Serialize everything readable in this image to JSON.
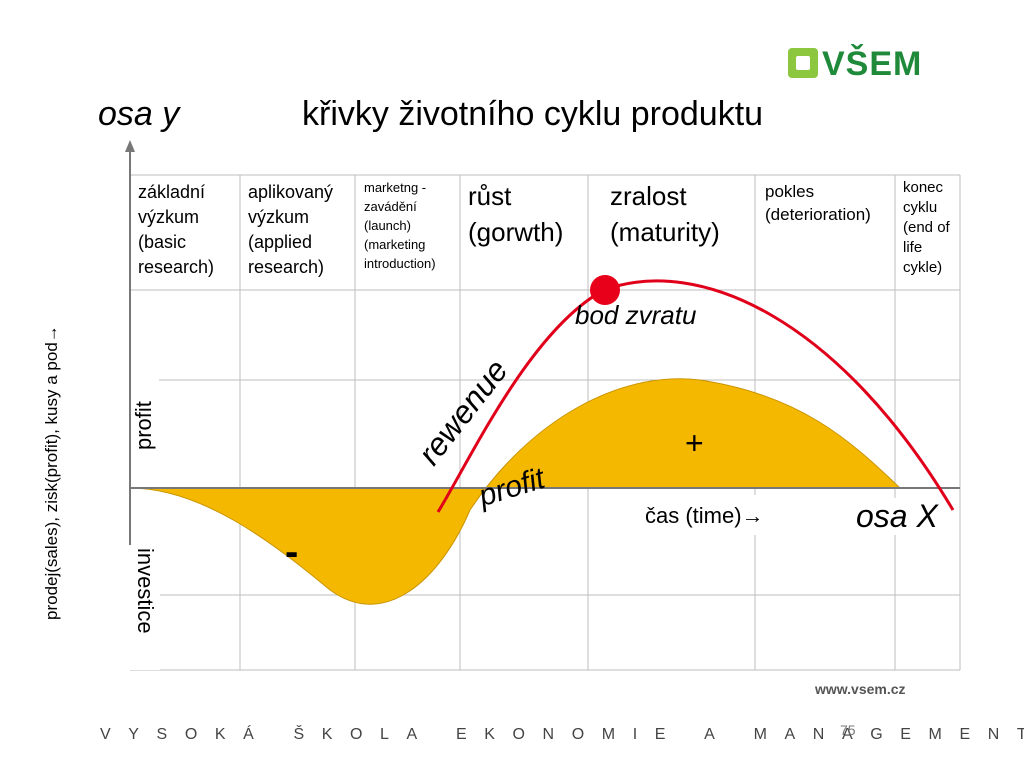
{
  "header": {
    "logo_text": "VŠEM",
    "axis_y_label": "osa y",
    "title": "křivky životního cyklu produktu"
  },
  "axes": {
    "y_axis_text": "prodej(sales), zisk(profit), kusy a pod→",
    "profit_label": "profit",
    "investment_label": "investice",
    "time_label": "čas (time)→",
    "x_axis_label": "osa X"
  },
  "phases": [
    {
      "lines": [
        "základní",
        "výzkum",
        "(basic",
        "research)"
      ]
    },
    {
      "lines": [
        "aplikovaný",
        "výzkum",
        "(applied",
        "research)"
      ]
    },
    {
      "lines": [
        "marketng -",
        "zavádění",
        "(launch)",
        "(marketing",
        "introduction)"
      ]
    },
    {
      "lines": [
        "růst",
        "(gorwth)"
      ]
    },
    {
      "lines": [
        "zralost",
        "(maturity)"
      ]
    },
    {
      "lines": [
        "pokles",
        "(deterioration)"
      ]
    },
    {
      "lines": [
        "konec",
        "cyklu",
        "(end of",
        "life",
        "cykle)"
      ]
    }
  ],
  "curve_labels": {
    "revenue": "rewenue",
    "profit": "profit",
    "turning_point": "bod zvratu",
    "plus": "+",
    "minus": "-"
  },
  "colors": {
    "profit_fill": "#f5b800",
    "revenue_line": "#e0001a",
    "turning_point": "#e8001a",
    "logo_green": "#1f8a3a",
    "logo_light_green": "#8dc63f"
  },
  "footer": {
    "url": "www.vsem.cz",
    "school": "VYSOKÁ ŠKOLA EKONOMIE A MANAGEMENTU",
    "page": "75"
  }
}
